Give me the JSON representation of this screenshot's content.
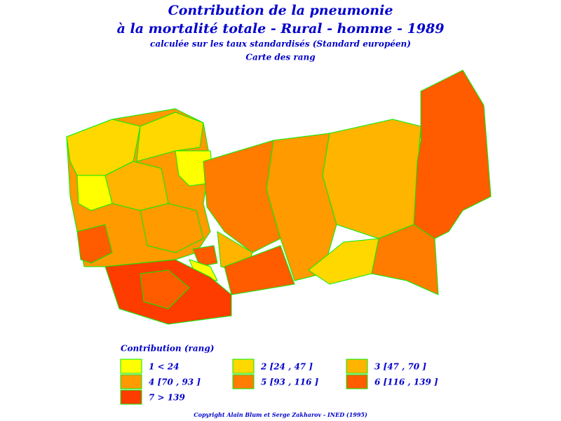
{
  "header": {
    "title_line1": "Contribution de la pneumonie",
    "title_line2": "à la mortalité totale - Rural - homme - 1989",
    "subtitle": "calculée sur les taux standardisés (Standard européen)",
    "map_caption": "Carte des rang"
  },
  "legend": {
    "title": "Contribution (rang)",
    "items": [
      {
        "label": "1 < 24",
        "color": "#ffff00"
      },
      {
        "label": "2 [24 , 47 ]",
        "color": "#ffd800"
      },
      {
        "label": "3 [47 , 70 ]",
        "color": "#ffb400"
      },
      {
        "label": "4 [70 , 93 ]",
        "color": "#ff9a00"
      },
      {
        "label": "5 [93 , 116 ]",
        "color": "#ff7c00"
      },
      {
        "label": "6 [116 , 139 ]",
        "color": "#ff5c00"
      },
      {
        "label": "7 > 139",
        "color": "#ff3c00"
      }
    ]
  },
  "footer": {
    "copyright": "Copyright Alain Blum et Serge Zakharov - INED (1995)"
  }
}
